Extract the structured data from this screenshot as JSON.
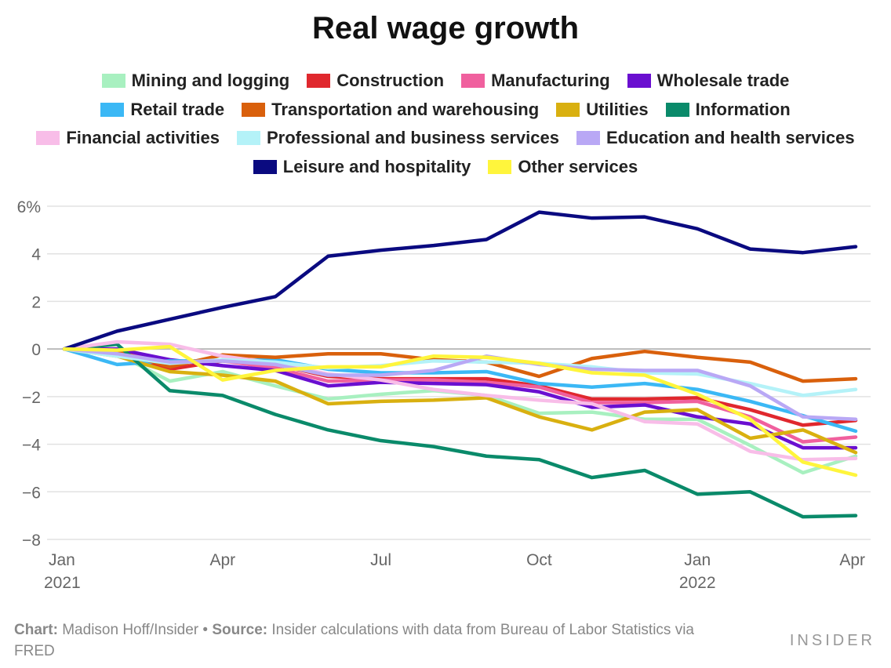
{
  "chart_data": {
    "type": "line",
    "title": "Real wage growth",
    "xlabel": "",
    "ylabel": "",
    "ylim": [
      -8,
      6
    ],
    "yticks": [
      6,
      4,
      2,
      0,
      -2,
      -4,
      -6,
      -8
    ],
    "ytick_labels": [
      "6%",
      "4",
      "2",
      "0",
      "−2",
      "−4",
      "−6",
      "−8"
    ],
    "x": [
      "2021-01",
      "2021-02",
      "2021-03",
      "2021-04",
      "2021-05",
      "2021-06",
      "2021-07",
      "2021-08",
      "2021-09",
      "2021-10",
      "2021-11",
      "2021-12",
      "2022-01",
      "2022-02",
      "2022-03",
      "2022-04"
    ],
    "xticks": [
      {
        "i": 0,
        "label": "Jan",
        "sub": "2021"
      },
      {
        "i": 3,
        "label": "Apr",
        "sub": ""
      },
      {
        "i": 6,
        "label": "Jul",
        "sub": ""
      },
      {
        "i": 9,
        "label": "Oct",
        "sub": ""
      },
      {
        "i": 12,
        "label": "Jan",
        "sub": "2022"
      },
      {
        "i": 15,
        "label": "Apr",
        "sub": ""
      }
    ],
    "grid": true,
    "legend_placement": "top",
    "series": [
      {
        "name": "Mining and logging",
        "color": "#a8f0c0",
        "values": [
          0,
          -0.2,
          -1.35,
          -0.95,
          -1.55,
          -2.1,
          -1.9,
          -1.75,
          -1.95,
          -2.7,
          -2.65,
          -2.95,
          -2.95,
          -4.05,
          -5.2,
          -4.5
        ]
      },
      {
        "name": "Construction",
        "color": "#e0282e",
        "values": [
          0,
          -0.1,
          -0.85,
          -0.5,
          -0.65,
          -1.15,
          -1.25,
          -1.25,
          -1.25,
          -1.55,
          -2.1,
          -2.1,
          -2.05,
          -2.55,
          -3.2,
          -3.0
        ]
      },
      {
        "name": "Manufacturing",
        "color": "#f0609e",
        "values": [
          0,
          -0.1,
          -0.6,
          -0.5,
          -0.8,
          -1.35,
          -1.3,
          -1.3,
          -1.4,
          -1.6,
          -2.25,
          -2.25,
          -2.2,
          -2.85,
          -3.9,
          -3.7
        ]
      },
      {
        "name": "Wholesale trade",
        "color": "#6a0fd0",
        "values": [
          0,
          0,
          -0.45,
          -0.7,
          -0.9,
          -1.55,
          -1.4,
          -1.45,
          -1.5,
          -1.8,
          -2.45,
          -2.35,
          -2.85,
          -3.15,
          -4.15,
          -4.15
        ]
      },
      {
        "name": "Retail trade",
        "color": "#3bb8f5",
        "values": [
          0,
          -0.65,
          -0.5,
          -0.5,
          -0.45,
          -0.85,
          -1.0,
          -1.0,
          -0.95,
          -1.45,
          -1.6,
          -1.45,
          -1.7,
          -2.2,
          -2.8,
          -3.45
        ]
      },
      {
        "name": "Transportation and warehousing",
        "color": "#d9600c",
        "values": [
          0,
          -0.1,
          -0.75,
          -0.25,
          -0.35,
          -0.2,
          -0.2,
          -0.45,
          -0.55,
          -1.15,
          -0.4,
          -0.1,
          -0.35,
          -0.55,
          -1.35,
          -1.25
        ]
      },
      {
        "name": "Utilities",
        "color": "#d9b010",
        "values": [
          0,
          -0.3,
          -0.95,
          -1.1,
          -1.35,
          -2.3,
          -2.2,
          -2.15,
          -2.05,
          -2.85,
          -3.4,
          -2.65,
          -2.55,
          -3.75,
          -3.4,
          -4.35
        ]
      },
      {
        "name": "Information",
        "color": "#0a8a6a",
        "values": [
          0,
          0.2,
          -1.75,
          -1.95,
          -2.75,
          -3.4,
          -3.85,
          -4.1,
          -4.5,
          -4.65,
          -5.4,
          -5.1,
          -6.1,
          -6.0,
          -7.05,
          -7.0
        ]
      },
      {
        "name": "Financial activities",
        "color": "#f8bde8",
        "values": [
          0,
          0.3,
          0.2,
          -0.3,
          -0.6,
          -1.05,
          -1.3,
          -1.7,
          -1.95,
          -2.15,
          -2.3,
          -3.05,
          -3.15,
          -4.3,
          -4.65,
          -4.6
        ]
      },
      {
        "name": "Professional and business services",
        "color": "#b4f2f8",
        "values": [
          0,
          -0.3,
          -0.6,
          -0.45,
          -0.55,
          -0.8,
          -0.7,
          -0.5,
          -0.55,
          -0.6,
          -0.75,
          -1.0,
          -1.05,
          -1.45,
          -1.95,
          -1.7
        ]
      },
      {
        "name": "Education and health services",
        "color": "#b9a8f5",
        "values": [
          0,
          -0.2,
          -0.55,
          -0.5,
          -0.65,
          -1.1,
          -1.1,
          -0.9,
          -0.3,
          -0.65,
          -0.85,
          -0.9,
          -0.9,
          -1.55,
          -2.85,
          -2.95
        ]
      },
      {
        "name": "Leisure and hospitality",
        "color": "#0a0a80",
        "values": [
          0,
          0.75,
          1.25,
          1.75,
          2.2,
          3.9,
          4.15,
          4.35,
          4.6,
          5.75,
          5.5,
          5.55,
          5.05,
          4.2,
          4.05,
          4.3
        ]
      },
      {
        "name": "Other services",
        "color": "#fff53c",
        "values": [
          0,
          -0.05,
          0.1,
          -1.3,
          -0.9,
          -0.75,
          -0.75,
          -0.3,
          -0.35,
          -0.6,
          -1.0,
          -1.1,
          -1.9,
          -2.95,
          -4.75,
          -5.3
        ]
      }
    ],
    "legend_rows": [
      [
        0,
        1,
        2,
        3
      ],
      [
        4,
        5,
        6,
        7
      ],
      [
        8,
        9,
        10
      ],
      [
        11,
        12
      ]
    ]
  },
  "footer": {
    "chart_label": "Chart:",
    "chart_value": " Madison Hoff/Insider • ",
    "source_label": "Source:",
    "source_value": " Insider calculations with data from Bureau of Labor Statistics via FRED"
  },
  "logo": "INSIDER"
}
